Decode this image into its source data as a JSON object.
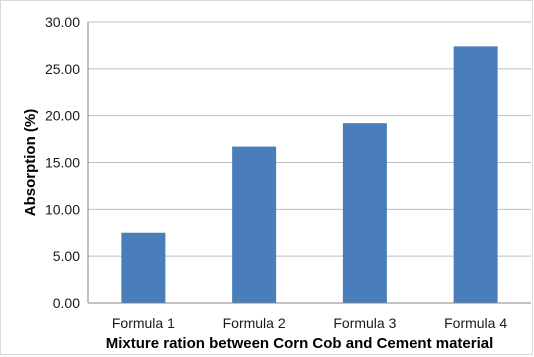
{
  "chart_data": {
    "type": "bar",
    "categories": [
      "Formula 1",
      "Formula 2",
      "Formula 3",
      "Formula 4"
    ],
    "values": [
      7.5,
      16.7,
      19.2,
      27.4
    ],
    "title": "",
    "xlabel": "Mixture ration between Corn Cob and Cement material",
    "ylabel": "Absorption (%)",
    "ylim": [
      0,
      30
    ],
    "yticks": [
      "0.00",
      "5.00",
      "10.00",
      "15.00",
      "20.00",
      "25.00",
      "30.00"
    ],
    "grid": true,
    "legend": "none",
    "colors": {
      "bar": "#4a7ebb",
      "grid": "#bfbfbf",
      "axis": "#868686"
    }
  }
}
